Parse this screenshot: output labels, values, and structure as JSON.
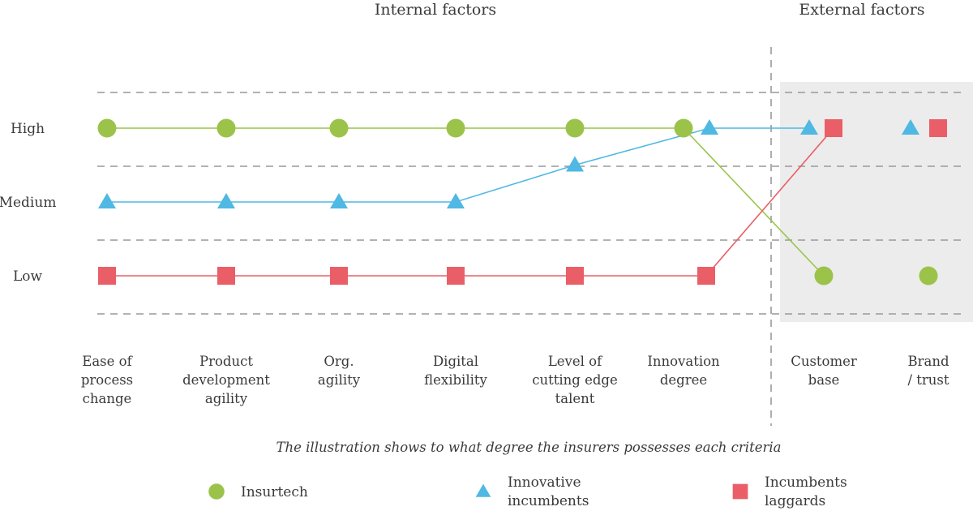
{
  "chart_data": {
    "type": "line",
    "section_titles": [
      "Internal factors",
      "External factors"
    ],
    "caption": "The illustration shows to what degree the insurers possesses each criteria",
    "y_levels": [
      "High",
      "Medium",
      "Low"
    ],
    "categories": [
      [
        "Ease of",
        "process",
        "change"
      ],
      [
        "Product",
        "development",
        "agility"
      ],
      [
        "Org.",
        "agility"
      ],
      [
        "Digital",
        "flexibility"
      ],
      [
        "Level of",
        "cutting edge",
        "talent"
      ],
      [
        "Innovation",
        "degree"
      ],
      [
        "Customer",
        "base"
      ],
      [
        "Brand",
        "/ trust"
      ]
    ],
    "external_start_index": 6,
    "series": [
      {
        "name": "Insurtech",
        "marker": "circle",
        "color": "#9bc34a",
        "values": [
          3,
          3,
          3,
          3,
          3,
          3,
          1,
          1
        ]
      },
      {
        "name": "Innovative incumbents",
        "marker": "triangle",
        "color": "#4fb8e3",
        "values": [
          2,
          2,
          2,
          2,
          2.5,
          3,
          3,
          3
        ]
      },
      {
        "name": "Incumbents laggards",
        "marker": "square",
        "color": "#ea5f67",
        "values": [
          1,
          1,
          1,
          1,
          1,
          1,
          3,
          3
        ]
      }
    ],
    "legend": [
      {
        "marker": "circle",
        "color": "#9bc34a",
        "lines": [
          "Insurtech"
        ]
      },
      {
        "marker": "triangle",
        "color": "#4fb8e3",
        "lines": [
          "Innovative",
          "incumbents"
        ]
      },
      {
        "marker": "square",
        "color": "#ea5f67",
        "lines": [
          "Incumbents",
          "laggards"
        ]
      }
    ],
    "grid": "dashed",
    "legend_position": "bottom",
    "shaded_region": "external factors",
    "colors": {
      "text": "#3a3a3a",
      "grid": "#999999",
      "shade": "#ececec"
    }
  }
}
